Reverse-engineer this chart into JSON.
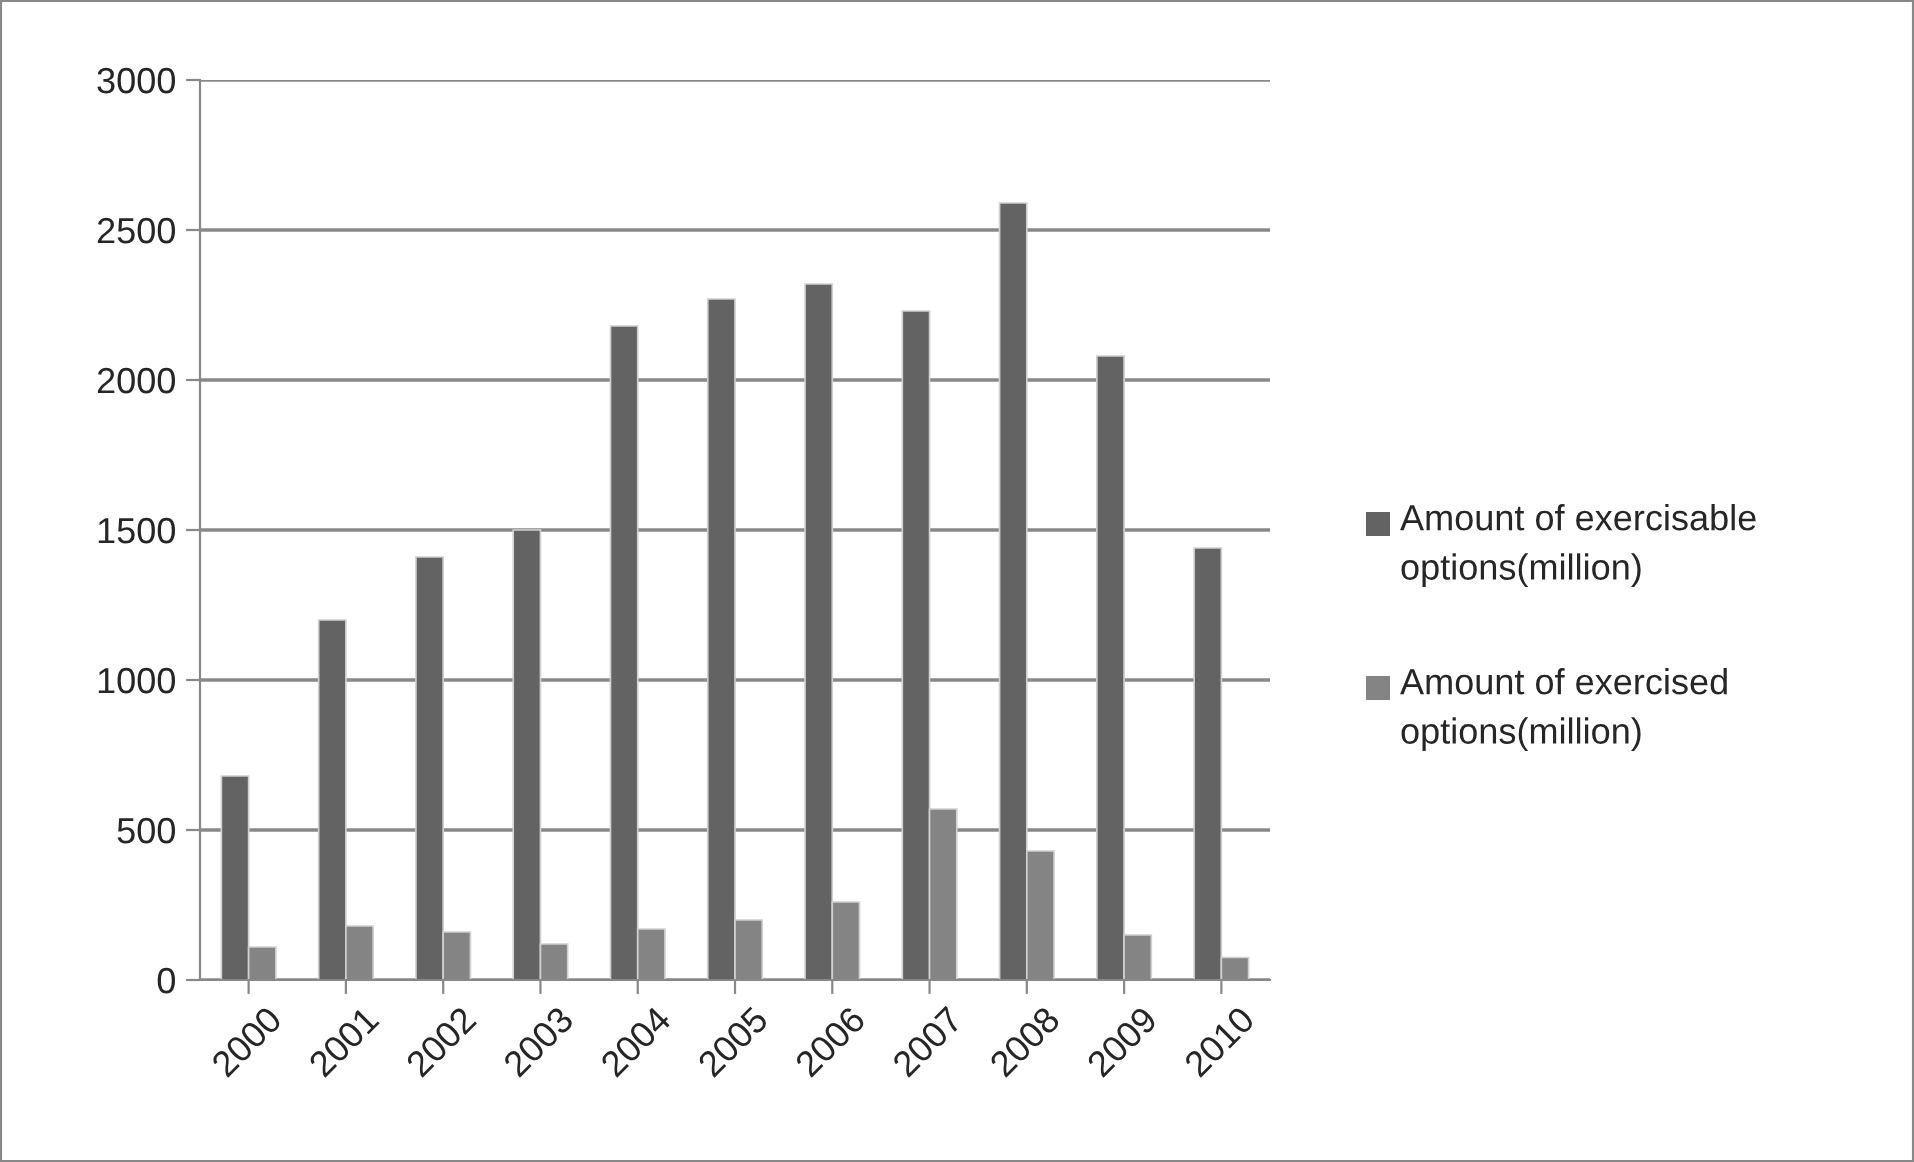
{
  "chart_data": {
    "type": "bar",
    "categories": [
      "2000",
      "2001",
      "2002",
      "2003",
      "2004",
      "2005",
      "2006",
      "2007",
      "2008",
      "2009",
      "2010"
    ],
    "series": [
      {
        "name": "Amount of exercisable options(million)",
        "color": "#636363",
        "values": [
          680,
          1200,
          1410,
          1500,
          2180,
          2270,
          2320,
          2230,
          2590,
          2080,
          1440
        ]
      },
      {
        "name": "Amount of exercised options(million)",
        "color": "#848484",
        "values": [
          110,
          180,
          160,
          120,
          170,
          200,
          260,
          570,
          430,
          150,
          75
        ]
      }
    ],
    "ylim": [
      0,
      3000
    ],
    "yticks": [
      0,
      500,
      1000,
      1500,
      2000,
      2500,
      3000
    ],
    "grid": "y",
    "legend": "right"
  }
}
